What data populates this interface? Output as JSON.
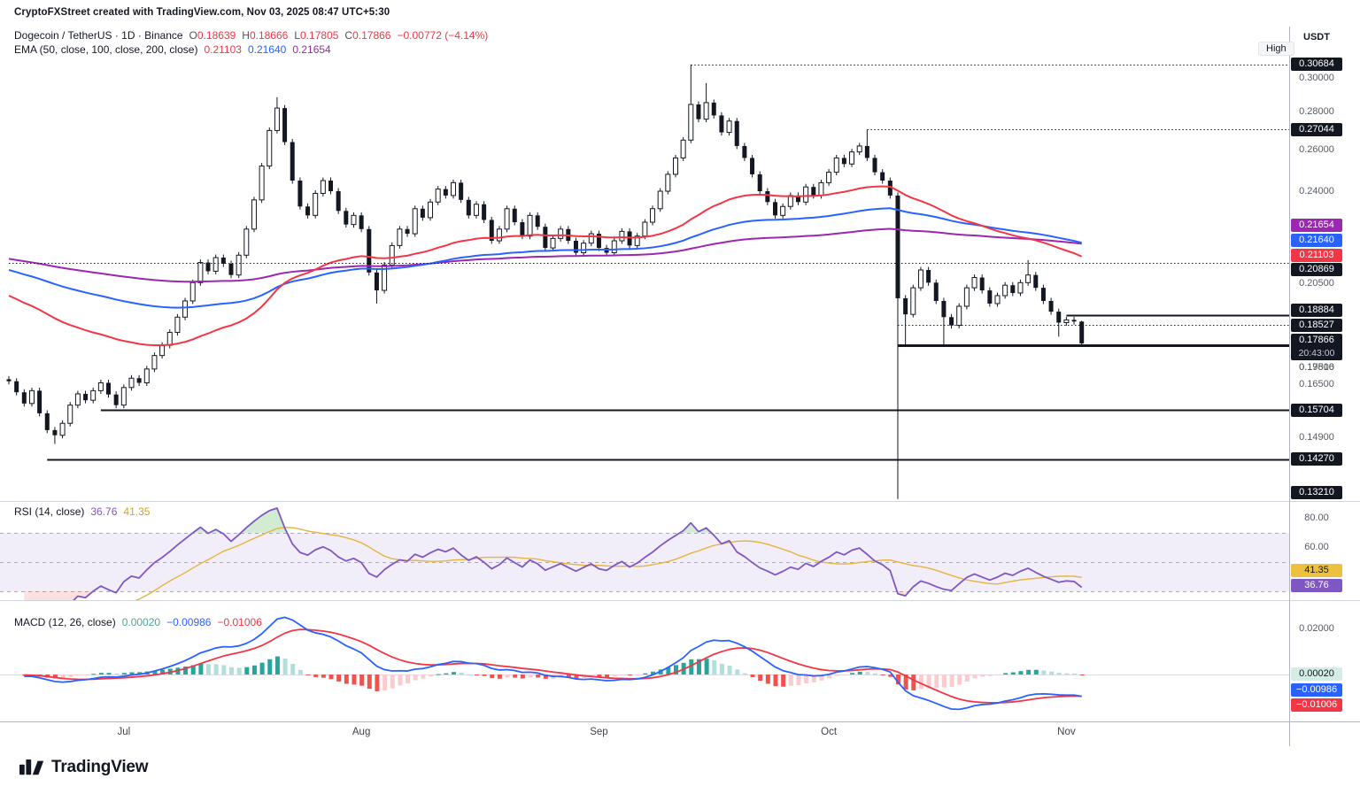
{
  "annotation": "CryptoFXStreet created with TradingView.com, Nov 03, 2025 08:47 UTC+5:30",
  "header": {
    "symbol": "Dogecoin / TetherUS · 1D · Binance",
    "o_label": "O",
    "o_value": "0.18639",
    "h_label": "H",
    "h_value": "0.18666",
    "l_label": "L",
    "l_value": "0.17805",
    "c_label": "C",
    "c_value": "0.17866",
    "change": "−0.00772 (−4.14%)",
    "ema_label": "EMA (50, close, 100, close, 200, close)",
    "ema_v50": "0.21103",
    "ema_v100": "0.21640",
    "ema_v200": "0.21654"
  },
  "rsi": {
    "label": "RSI (14, close)",
    "v_main": "36.76",
    "v_ma": "41.35",
    "ticks": [
      {
        "label": "80.00",
        "value": 80
      },
      {
        "label": "60.00",
        "value": 60
      }
    ],
    "badges": [
      {
        "label": "41.35",
        "value": 41.35,
        "bg": "#EDC13F",
        "fg": "#131722",
        "kind": "ema"
      },
      {
        "label": "36.76",
        "value": 36.76,
        "bg": "#7E57C2",
        "fg": "#FFFFFF",
        "kind": "ema"
      }
    ]
  },
  "macd": {
    "label": "MACD (12, 26, close)",
    "v_hist": "0.00020",
    "v_macd": "−0.00986",
    "v_signal": "−0.01006",
    "ticks": [
      {
        "label": "0.02000",
        "value": 0.02
      }
    ],
    "badges": [
      {
        "label": "0.00020",
        "value": 0.0002,
        "bg": "#D5EBE6",
        "fg": "#131722",
        "kind": "level"
      },
      {
        "label": "−0.00986",
        "value": -0.00986,
        "bg": "#2962FF",
        "fg": "#FFFFFF",
        "kind": "ema"
      },
      {
        "label": "−0.01006",
        "value": -0.01006,
        "bg": "#F23645",
        "fg": "#FFFFFF",
        "kind": "ema"
      }
    ]
  },
  "axis": {
    "currency": "USDT",
    "high_label": "High",
    "ticks": [
      {
        "label": "0.30000",
        "price": 0.3
      },
      {
        "label": "0.28000",
        "price": 0.28
      },
      {
        "label": "0.26000",
        "price": 0.26
      },
      {
        "label": "0.24000",
        "price": 0.24
      },
      {
        "label": "0.20500",
        "price": 0.205
      },
      {
        "label": "0.19500",
        "price": 0.195
      },
      {
        "label": "0.17816",
        "price": 0.17816
      },
      {
        "label": "0.16500",
        "price": 0.165
      },
      {
        "label": "0.14900",
        "price": 0.149
      }
    ],
    "badges": [
      {
        "label": "0.30684",
        "price": 0.30684,
        "bg": "#131722",
        "fg": "#FFFFFF",
        "kind": "level"
      },
      {
        "label": "0.27044",
        "price": 0.27044,
        "bg": "#131722",
        "fg": "#FFFFFF",
        "kind": "level"
      },
      {
        "label": "0.21654",
        "price": 0.21654,
        "bg": "#9C27B0",
        "fg": "#FFFFFF",
        "kind": "ema"
      },
      {
        "label": "0.21640",
        "price": 0.2164,
        "bg": "#2962FF",
        "fg": "#FFFFFF",
        "kind": "ema"
      },
      {
        "label": "0.21103",
        "price": 0.21103,
        "bg": "#F23645",
        "fg": "#FFFFFF",
        "kind": "ema"
      },
      {
        "label": "0.20869",
        "price": 0.20869,
        "bg": "#131722",
        "fg": "#FFFFFF",
        "kind": "level"
      },
      {
        "label": "0.18884",
        "price": 0.18884,
        "bg": "#131722",
        "fg": "#FFFFFF",
        "kind": "level"
      },
      {
        "label": "0.18527",
        "price": 0.18527,
        "bg": "#131722",
        "fg": "#FFFFFF",
        "kind": "level"
      },
      {
        "label": "0.17866",
        "price": 0.17866,
        "bg": "#131722",
        "fg": "#FFFFFF",
        "kind": "current",
        "countdown": "20:43:00"
      },
      {
        "label": "0.15704",
        "price": 0.15704,
        "bg": "#131722",
        "fg": "#FFFFFF",
        "kind": "level"
      },
      {
        "label": "0.14270",
        "price": 0.1427,
        "bg": "#131722",
        "fg": "#FFFFFF",
        "kind": "level"
      },
      {
        "label": "0.13210",
        "price": 0.1321,
        "bg": "#131722",
        "fg": "#FFFFFF",
        "kind": "level"
      }
    ]
  },
  "time_axis_note": "months drawn from chart_data.x_axis.labels",
  "logo_text": "TradingView",
  "colors": {
    "up_candle": "#FFFFFF",
    "down_candle": "#131722",
    "candle_border": "#131722",
    "ema50": "#F23645",
    "ema100": "#2962FF",
    "ema200": "#9C27B0",
    "rsi": "#7E57C2",
    "rsi_ma": "#E5B43C",
    "rsi_band_fill": "rgba(126,87,194,0.10)",
    "rsi_overbought_fill": "rgba(76,175,80,0.25)",
    "rsi_oversold_fill": "rgba(239,83,80,0.18)",
    "macd": "#2962FF",
    "signal": "#F23645",
    "hist_grow_above": "#26A69A",
    "hist_fall_above": "#B2DFDB",
    "hist_fall_below": "#EF5350",
    "hist_grow_below": "#FCCBCD",
    "level": "#131722",
    "separator": "#D1D4DC",
    "axis_border": "#B2B5BE",
    "dashed": "#A8ABB3"
  },
  "chart_data": {
    "type": "candlestick",
    "symbol": "DOGEUSDT",
    "name": "Dogecoin / TetherUS",
    "interval": "1D",
    "exchange": "Binance",
    "current": {
      "open": 0.18639,
      "high": 0.18666,
      "low": 0.17805,
      "close": 0.17866,
      "change": -0.00772,
      "change_pct": -4.14
    },
    "price_range": {
      "scale": "log",
      "min": 0.1316,
      "max": 0.3303
    },
    "rsi_range": {
      "min": 24,
      "max": 91
    },
    "macd_range": {
      "min": -0.02,
      "max": 0.0319
    },
    "closes": [
      0.166,
      0.1625,
      0.159,
      0.163,
      0.156,
      0.151,
      0.1495,
      0.153,
      0.1585,
      0.162,
      0.16,
      0.163,
      0.1655,
      0.1618,
      0.1585,
      0.164,
      0.167,
      0.1655,
      0.17,
      0.1745,
      0.178,
      0.1825,
      0.188,
      0.194,
      0.201,
      0.209,
      0.2055,
      0.211,
      0.2085,
      0.204,
      0.212,
      0.223,
      0.236,
      0.252,
      0.27,
      0.282,
      0.264,
      0.245,
      0.233,
      0.229,
      0.239,
      0.245,
      0.24,
      0.231,
      0.225,
      0.229,
      0.223,
      0.205,
      0.198,
      0.208,
      0.216,
      0.223,
      0.221,
      0.232,
      0.228,
      0.235,
      0.241,
      0.238,
      0.244,
      0.236,
      0.229,
      0.234,
      0.227,
      0.218,
      0.223,
      0.232,
      0.226,
      0.22,
      0.229,
      0.224,
      0.215,
      0.219,
      0.223,
      0.218,
      0.213,
      0.217,
      0.221,
      0.215,
      0.213,
      0.218,
      0.222,
      0.216,
      0.22,
      0.226,
      0.232,
      0.24,
      0.248,
      0.256,
      0.265,
      0.284,
      0.276,
      0.285,
      0.278,
      0.269,
      0.275,
      0.262,
      0.256,
      0.248,
      0.24,
      0.235,
      0.229,
      0.233,
      0.238,
      0.235,
      0.242,
      0.238,
      0.244,
      0.249,
      0.256,
      0.253,
      0.259,
      0.262,
      0.256,
      0.249,
      0.245,
      0.238,
      0.195,
      0.189,
      0.199,
      0.206,
      0.201,
      0.194,
      0.188,
      0.185,
      0.192,
      0.199,
      0.203,
      0.198,
      0.193,
      0.196,
      0.2,
      0.197,
      0.201,
      0.204,
      0.199,
      0.194,
      0.19,
      0.186,
      0.187,
      0.1864,
      0.17866
    ],
    "overrides": {
      "6": {
        "l": 0.147
      },
      "35": {
        "h": 0.288
      },
      "48": {
        "l": 0.193
      },
      "89": {
        "h": 0.30684
      },
      "91": {
        "h": 0.296
      },
      "112": {
        "h": 0.27044
      },
      "116": {
        "l": 0.1321
      },
      "117": {
        "l": 0.178
      },
      "122": {
        "l": 0.178
      },
      "133": {
        "h": 0.21
      },
      "137": {
        "l": 0.181
      },
      "140": {
        "o": 0.18639,
        "h": 0.18666,
        "l": 0.17805
      }
    },
    "emas": [
      {
        "period": 50,
        "seed": 0.196,
        "color": "#F23645",
        "value": 0.21103
      },
      {
        "period": 100,
        "seed": 0.206,
        "color": "#2962FF",
        "value": 0.2164
      },
      {
        "period": 200,
        "seed": 0.2105,
        "color": "#9C27B0",
        "value": 0.21654
      }
    ],
    "levels": [
      {
        "price": 0.30684,
        "style": "dotted",
        "from_index": 89,
        "width": 1
      },
      {
        "price": 0.27044,
        "style": "dotted",
        "from_index": 112,
        "width": 1
      },
      {
        "price": 0.20869,
        "style": "dotted",
        "from_index": 0,
        "width": 1
      },
      {
        "price": 0.18527,
        "style": "dotted",
        "from_index": 116,
        "width": 1
      },
      {
        "price": 0.18884,
        "style": "solid",
        "from_index": 138,
        "width": 2
      },
      {
        "price": 0.17816,
        "style": "solid",
        "from_index": 116,
        "width": 3
      },
      {
        "price": 0.15704,
        "style": "solid",
        "from_index": 12,
        "width": 2
      },
      {
        "price": 0.1427,
        "style": "solid",
        "from_index": 5,
        "width": 2
      }
    ],
    "rsi": {
      "period": 14,
      "value": 36.76,
      "ma_value": 41.35,
      "bands": [
        70,
        50,
        30
      ]
    },
    "macd": {
      "fast": 12,
      "slow": 26,
      "signal": 9,
      "macd_value": -0.00986,
      "signal_value": -0.01006,
      "hist_value": 0.0002
    },
    "x_axis": {
      "labels": [
        {
          "label": "Jul",
          "index": 15
        },
        {
          "label": "Aug",
          "index": 46
        },
        {
          "label": "Sep",
          "index": 77
        },
        {
          "label": "Oct",
          "index": 107
        },
        {
          "label": "Nov",
          "index": 138
        }
      ]
    }
  }
}
